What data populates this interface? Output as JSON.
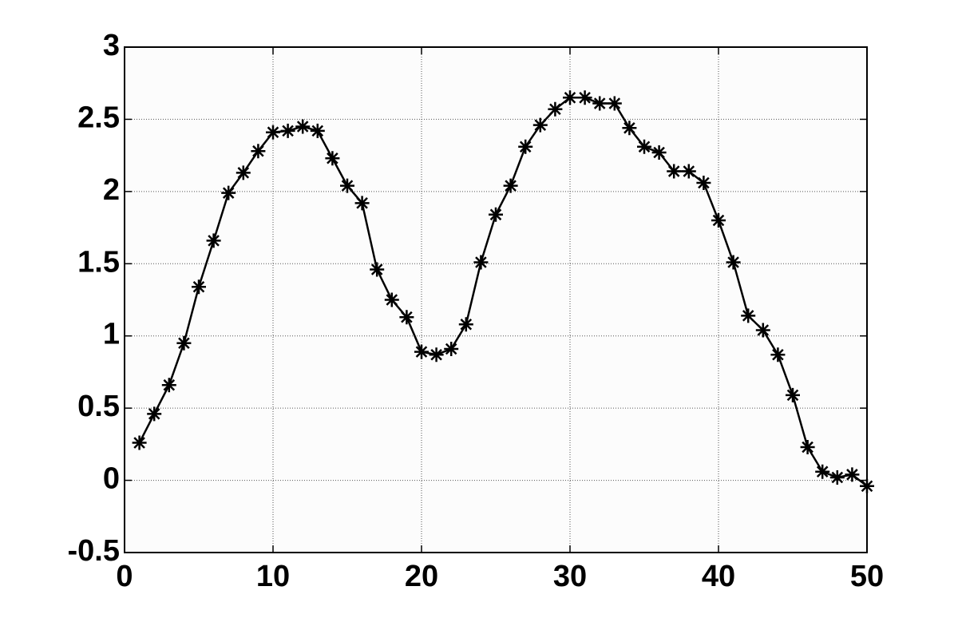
{
  "chart_data": {
    "type": "line",
    "color": "#000000",
    "marker": "*",
    "grid": true,
    "x": [
      1,
      2,
      3,
      4,
      5,
      6,
      7,
      8,
      9,
      10,
      11,
      12,
      13,
      14,
      15,
      16,
      17,
      18,
      19,
      20,
      21,
      22,
      23,
      24,
      25,
      26,
      27,
      28,
      29,
      30,
      31,
      32,
      33,
      34,
      35,
      36,
      37,
      38,
      39,
      40,
      41,
      42,
      43,
      44,
      45,
      46,
      47,
      48,
      49,
      50
    ],
    "values": [
      0.26,
      0.46,
      0.66,
      0.95,
      1.34,
      1.66,
      1.99,
      2.13,
      2.28,
      2.41,
      2.42,
      2.45,
      2.42,
      2.23,
      2.04,
      1.92,
      1.46,
      1.25,
      1.13,
      0.89,
      0.87,
      0.91,
      1.08,
      1.51,
      1.84,
      2.04,
      2.31,
      2.46,
      2.57,
      2.65,
      2.65,
      2.61,
      2.61,
      2.44,
      2.31,
      2.27,
      2.14,
      2.14,
      2.06,
      1.8,
      1.51,
      1.14,
      1.04,
      0.87,
      0.59,
      0.23,
      0.06,
      0.02,
      0.04,
      -0.04
    ],
    "xlim": [
      0,
      50
    ],
    "xticks": [
      0,
      10,
      20,
      30,
      40,
      50
    ],
    "ylim": [
      -0.5,
      3
    ],
    "yticks": [
      -0.5,
      0,
      0.5,
      1,
      1.5,
      2,
      2.5,
      3
    ]
  }
}
